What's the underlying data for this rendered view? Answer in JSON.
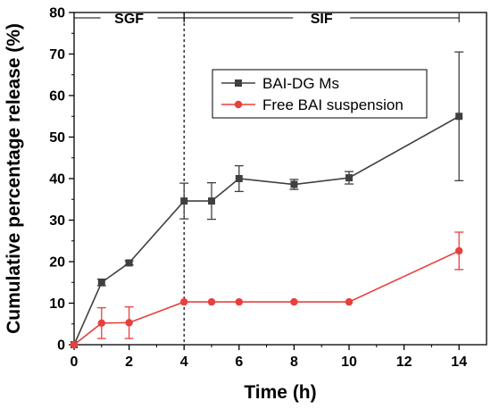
{
  "chart_data": {
    "type": "line",
    "xlabel": "Time (h)",
    "ylabel": "Cumulative percentage release (%)",
    "xlim": [
      0,
      15
    ],
    "ylim": [
      0,
      80
    ],
    "x_ticks": [
      0,
      2,
      4,
      6,
      8,
      10,
      12,
      14
    ],
    "y_ticks": [
      0,
      10,
      20,
      30,
      40,
      50,
      60,
      70,
      80
    ],
    "grid": false,
    "legend_position": "top-right",
    "phases": [
      {
        "label": "SGF",
        "x_start": 0,
        "x_end": 4
      },
      {
        "label": "SIF",
        "x_start": 4,
        "x_end": 14
      }
    ],
    "divider_x": 4,
    "series": [
      {
        "name": "BAI-DG Ms",
        "color": "#404040",
        "marker": "square",
        "points": [
          {
            "x": 0,
            "y": 0,
            "err": 0
          },
          {
            "x": 1,
            "y": 15.0,
            "err": 0.8
          },
          {
            "x": 2,
            "y": 19.7,
            "err": 0.5
          },
          {
            "x": 4,
            "y": 34.6,
            "err": 4.3
          },
          {
            "x": 5,
            "y": 34.6,
            "err": 4.4
          },
          {
            "x": 6,
            "y": 40.0,
            "err": 3.1
          },
          {
            "x": 8,
            "y": 38.6,
            "err": 1.2
          },
          {
            "x": 10,
            "y": 40.2,
            "err": 1.5
          },
          {
            "x": 14,
            "y": 55.0,
            "err": 15.5
          }
        ]
      },
      {
        "name": "Free BAI suspension",
        "color": "#e8403d",
        "marker": "circle",
        "points": [
          {
            "x": 0,
            "y": 0,
            "err": 0
          },
          {
            "x": 1,
            "y": 5.2,
            "err": 3.7
          },
          {
            "x": 2,
            "y": 5.3,
            "err": 3.8
          },
          {
            "x": 4,
            "y": 10.3,
            "err": 0
          },
          {
            "x": 5,
            "y": 10.3,
            "err": 0
          },
          {
            "x": 6,
            "y": 10.3,
            "err": 0
          },
          {
            "x": 8,
            "y": 10.3,
            "err": 0
          },
          {
            "x": 10,
            "y": 10.3,
            "err": 0
          },
          {
            "x": 14,
            "y": 22.6,
            "err": 4.5
          }
        ]
      }
    ]
  }
}
